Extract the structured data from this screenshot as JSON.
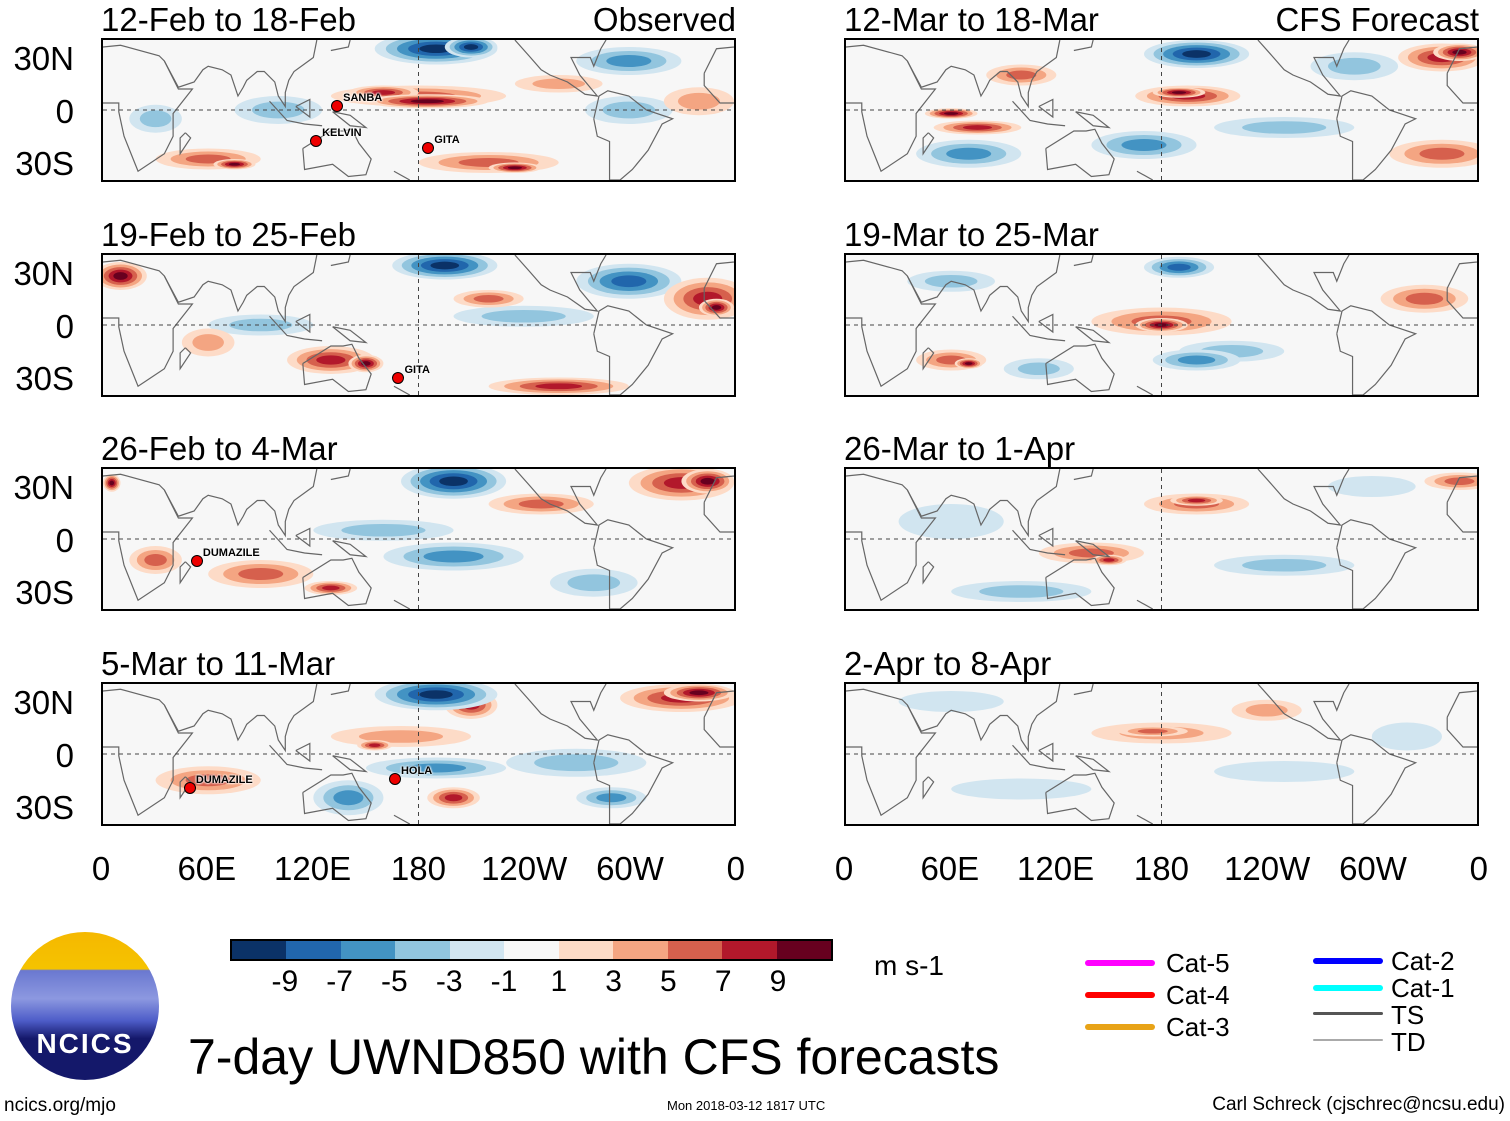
{
  "panels": [
    {
      "title": "12-Feb to 18-Feb",
      "label": "Observed",
      "storms": [
        {
          "name": "SANBA",
          "lon": 137,
          "lat": 6
        },
        {
          "name": "KELVIN",
          "lon": 125,
          "lat": -14
        },
        {
          "name": "GITA",
          "lon": 189,
          "lat": -18
        }
      ]
    },
    {
      "title": "12-Mar to 18-Mar",
      "label": "CFS Forecast",
      "storms": []
    },
    {
      "title": "19-Feb to 25-Feb",
      "label": "",
      "storms": [
        {
          "name": "GITA",
          "lon": 172,
          "lat": -27
        }
      ]
    },
    {
      "title": "19-Mar to 25-Mar",
      "label": "",
      "storms": []
    },
    {
      "title": "26-Feb to 4-Mar",
      "label": "",
      "storms": [
        {
          "name": "DUMAZILE",
          "lon": 57,
          "lat": -9
        }
      ]
    },
    {
      "title": "26-Mar to 1-Apr",
      "label": "",
      "storms": []
    },
    {
      "title": "5-Mar to 11-Mar",
      "label": "",
      "storms": [
        {
          "name": "DUMAZILE",
          "lon": 53,
          "lat": -16
        },
        {
          "name": "HOLA",
          "lon": 170,
          "lat": -11
        }
      ]
    },
    {
      "title": "2-Apr to 8-Apr",
      "label": "",
      "storms": []
    }
  ],
  "lat_labels": [
    "30N",
    "0",
    "30S"
  ],
  "lon_labels": [
    "0",
    "60E",
    "120E",
    "180",
    "120W",
    "60W",
    "0"
  ],
  "colorbar": {
    "colors": [
      "#0b3267",
      "#2166ac",
      "#4393c3",
      "#92c5de",
      "#d1e5f0",
      "#f7f7f7",
      "#fddbc7",
      "#f4a582",
      "#d6604d",
      "#b2182b",
      "#67001f"
    ],
    "labels": [
      "-9",
      "-7",
      "-5",
      "-3",
      "-1",
      "1",
      "3",
      "5",
      "7",
      "9"
    ],
    "units": "m s-1"
  },
  "legend": [
    {
      "label": "Cat-5",
      "color": "#ff00ff"
    },
    {
      "label": "Cat-4",
      "color": "#ff0000"
    },
    {
      "label": "Cat-3",
      "color": "#e8a317"
    },
    {
      "label": "Cat-2",
      "color": "#0000ff"
    },
    {
      "label": "Cat-1",
      "color": "#00ffff"
    },
    {
      "label": "TS",
      "color": "#555555"
    },
    {
      "label": "TD",
      "color": "#aaaaaa"
    }
  ],
  "logo_text": "NCICS",
  "title": "7-day UWND850 with CFS forecasts",
  "footer": {
    "left": "ncics.org/mjo",
    "center": "Mon 2018-03-12 1817 UTC",
    "right": "Carl Schreck (cjschrec@ncsu.edu)"
  }
}
